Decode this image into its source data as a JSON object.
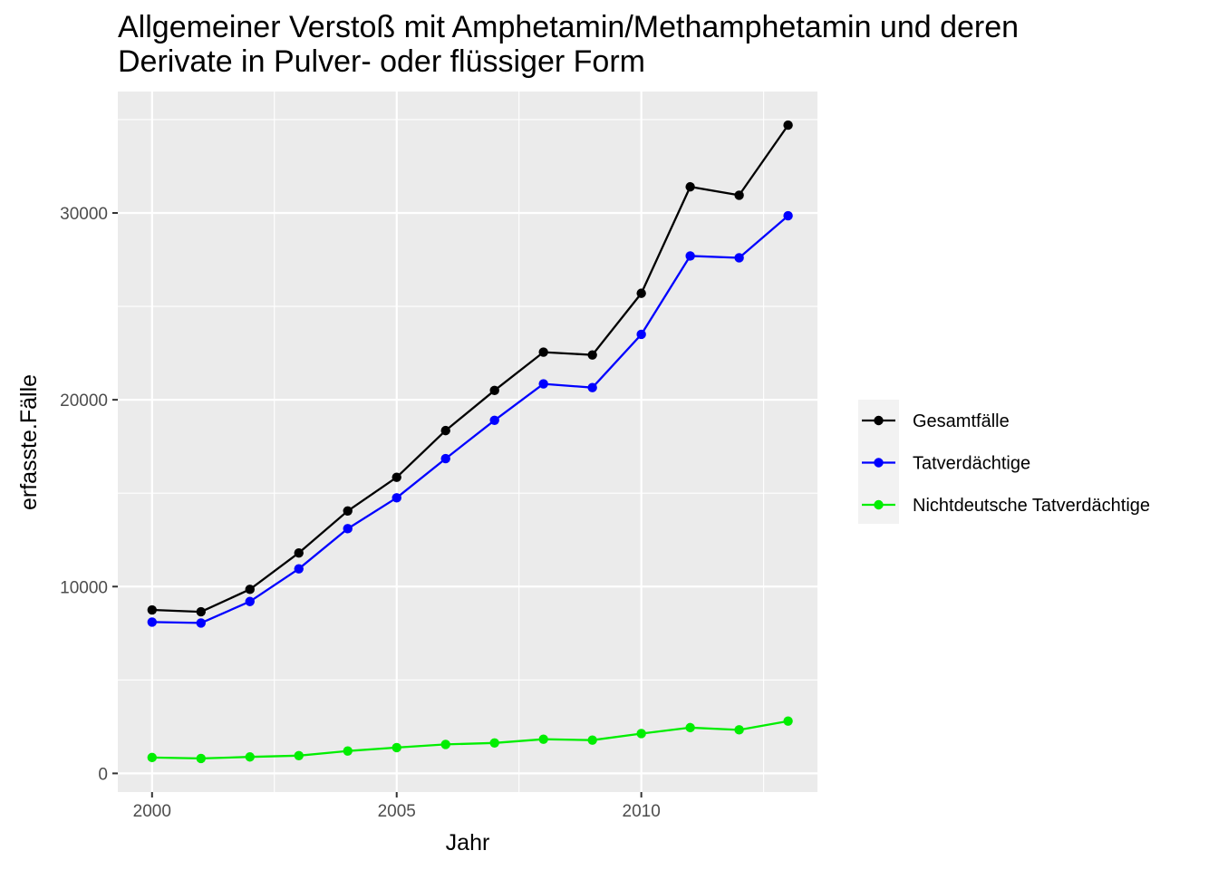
{
  "chart_data": {
    "type": "line",
    "title_lines": [
      "Allgemeiner Verstoß mit Amphetamin/Methamphetamin und deren",
      "Derivate in Pulver- oder flüssiger Form"
    ],
    "xlabel": "Jahr",
    "ylabel": "erfasste.Fälle",
    "x": [
      2000,
      2001,
      2002,
      2003,
      2004,
      2005,
      2006,
      2007,
      2008,
      2009,
      2010,
      2011,
      2012,
      2013
    ],
    "xlim": [
      1999.3,
      2013.6
    ],
    "ylim": [
      -1000,
      36500
    ],
    "x_ticks": [
      2000,
      2005,
      2010
    ],
    "x_tick_labels": [
      "2000",
      "2005",
      "2010"
    ],
    "x_minor_ticks": [
      2002.5,
      2007.5,
      2012.5
    ],
    "y_ticks": [
      0,
      10000,
      20000,
      30000
    ],
    "y_tick_labels": [
      "0",
      "10000",
      "20000",
      "30000"
    ],
    "y_minor_ticks": [
      5000,
      15000,
      25000,
      35000
    ],
    "grid": true,
    "legend_position": "right",
    "background_color": "#ebebeb",
    "series": [
      {
        "name": "Gesamtfälle",
        "color": "#000000",
        "values": [
          8750,
          8650,
          9850,
          11800,
          14050,
          15850,
          18350,
          20500,
          22550,
          22400,
          25700,
          31400,
          30950,
          34700
        ]
      },
      {
        "name": "Tatverdächtige",
        "color": "#0000ff",
        "values": [
          8100,
          8050,
          9200,
          10950,
          13100,
          14750,
          16850,
          18900,
          20850,
          20650,
          23500,
          27700,
          27600,
          29850
        ]
      },
      {
        "name": "Nichtdeutsche Tatverdächtige",
        "color": "#00ee00",
        "values": [
          850,
          800,
          880,
          950,
          1200,
          1380,
          1550,
          1630,
          1830,
          1780,
          2130,
          2450,
          2330,
          2800
        ]
      }
    ]
  }
}
